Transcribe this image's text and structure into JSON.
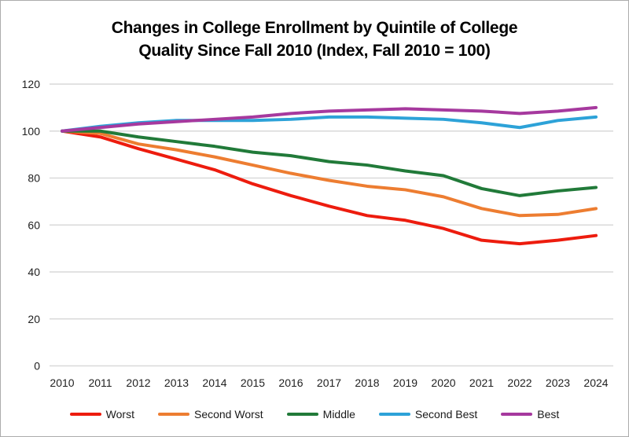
{
  "chart_data": {
    "type": "line",
    "title_lines": [
      "Changes in College Enrollment by Quintile of College",
      "Quality Since Fall 2010 (Index, Fall 2010 = 100)"
    ],
    "x_categories": [
      "2010",
      "2011",
      "2012",
      "2013",
      "2014",
      "2015",
      "2016",
      "2017",
      "2018",
      "2019",
      "2020",
      "2021",
      "2022",
      "2023",
      "2024"
    ],
    "y_ticks": [
      0,
      20,
      40,
      60,
      80,
      100,
      120
    ],
    "ylim": [
      0,
      120
    ],
    "grid": true,
    "legend_position": "bottom",
    "gridline_color": "#D9D9D9",
    "tick_label_color": "#1F1F1F",
    "series": [
      {
        "name": "Worst",
        "color": "#ED1C0E",
        "values": [
          100,
          97.5,
          92.5,
          88,
          83.5,
          77.5,
          72.5,
          68,
          64,
          62,
          58.5,
          53.5,
          52,
          53.5,
          55.5
        ]
      },
      {
        "name": "Second Worst",
        "color": "#ED7D31",
        "values": [
          100,
          99,
          94.5,
          92,
          89,
          85.5,
          82,
          79,
          76.5,
          75,
          72,
          67,
          64,
          64.5,
          67
        ]
      },
      {
        "name": "Middle",
        "color": "#217A39",
        "values": [
          100,
          100,
          97.5,
          95.5,
          93.5,
          91,
          89.5,
          87,
          85.5,
          83,
          81,
          75.5,
          72.5,
          74.5,
          76
        ]
      },
      {
        "name": "Second Best",
        "color": "#2DA2D8",
        "values": [
          100,
          102,
          103.5,
          104.5,
          104.5,
          104.5,
          105,
          106,
          106,
          105.5,
          105,
          103.5,
          101.5,
          104.5,
          106
        ]
      },
      {
        "name": "Best",
        "color": "#A6399E",
        "values": [
          100,
          101.5,
          103,
          104,
          105,
          106,
          107.5,
          108.5,
          109,
          109.5,
          109,
          108.5,
          107.5,
          108.5,
          110
        ]
      }
    ]
  }
}
